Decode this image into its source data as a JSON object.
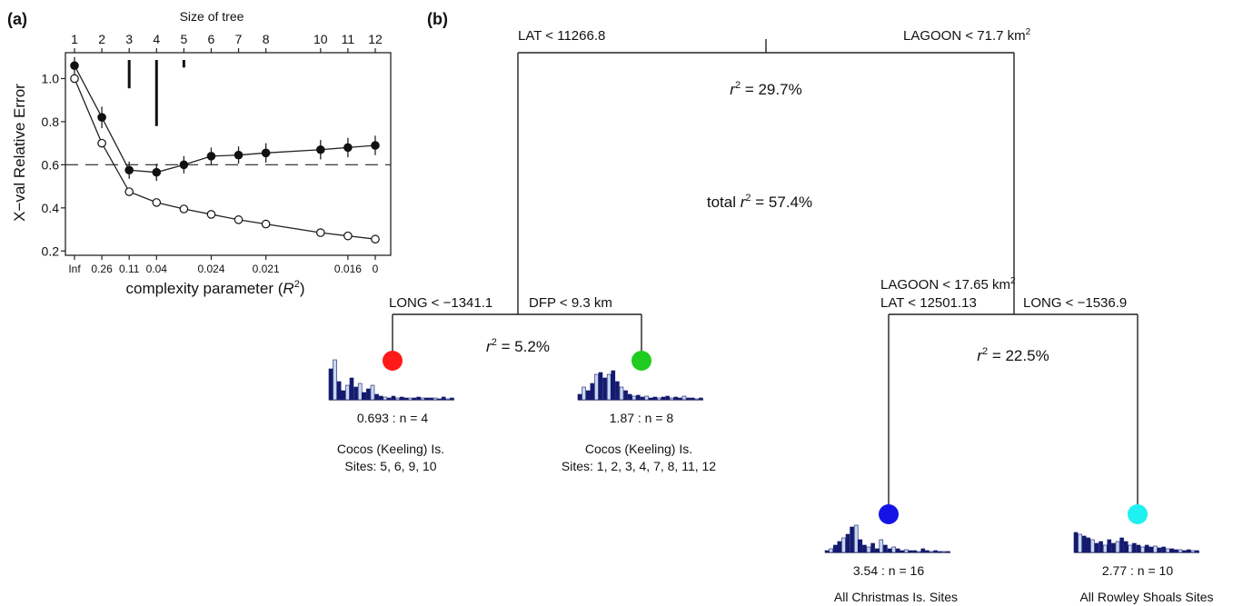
{
  "panel_a": {
    "label": "(a)",
    "top_axis_title": "Size of tree",
    "xlabel_prefix": "complexity parameter (",
    "xlabel_var": "R",
    "xlabel_sup": "2",
    "xlabel_suffix": ")",
    "ylabel": "X−val Relative Error"
  },
  "panel_b": {
    "label": "(b)",
    "root_left_split": "LAT < 11266.8",
    "root_right_split": "LAGOON < 71.7 km",
    "root_right_sup": "2",
    "root_r2": "= 29.7%",
    "total_prefix": "total ",
    "total_r2": "= 57.4%",
    "left_left_split": "LONG < −1341.1",
    "left_right_split": "DFP < 9.3 km",
    "left_r2": "= 5.2%",
    "right_split_line1": "LAGOON < 17.65 km",
    "right_split_line1_sup": "2",
    "right_split_line2": "LAT < 12501.13",
    "right_right_split": "LONG < −1536.9",
    "right_r2": "= 22.5%",
    "r_symbol": "r",
    "r_sup": "2",
    "leaves": [
      {
        "color": "#ff1a1a",
        "stat": "0.693 : n = 4",
        "line1": "Cocos (Keeling) Is.",
        "line2": "Sites: 5, 6, 9, 10"
      },
      {
        "color": "#1fcc1f",
        "stat": "1.87 : n = 8",
        "line1": "Cocos (Keeling) Is.",
        "line2": "Sites: 1, 2, 3, 4, 7, 8, 11, 12"
      },
      {
        "color": "#1414e6",
        "stat": "3.54 : n = 16",
        "line1": "All Christmas Is. Sites",
        "line2": ""
      },
      {
        "color": "#1ff0f0",
        "stat": "2.77 : n = 10",
        "line1": "All Rowley Shoals Sites",
        "line2": ""
      }
    ]
  },
  "chart_data": [
    {
      "type": "line",
      "title": "",
      "xlabel": "complexity parameter (R2)",
      "ylabel": "X−val Relative Error",
      "top_axis_label": "Size of tree",
      "x": [
        1,
        2,
        3,
        4,
        5,
        6,
        7,
        8,
        10,
        11,
        12
      ],
      "x_top_ticks": [
        "1",
        "2",
        "3",
        "4",
        "5",
        "6",
        "7",
        "8",
        "10",
        "11",
        "12"
      ],
      "x_bottom_ticks": [
        {
          "pos": 1,
          "label": "Inf"
        },
        {
          "pos": 2,
          "label": "0.26"
        },
        {
          "pos": 3,
          "label": "0.11"
        },
        {
          "pos": 4,
          "label": "0.04"
        },
        {
          "pos": 6,
          "label": "0.024"
        },
        {
          "pos": 8,
          "label": "0.021"
        },
        {
          "pos": 11,
          "label": "0.016"
        },
        {
          "pos": 12,
          "label": "0"
        }
      ],
      "ylim": [
        0.18,
        1.12
      ],
      "yticks": [
        0.2,
        0.4,
        0.6,
        0.8,
        1.0
      ],
      "ytick_labels": [
        "0.2",
        "0.4",
        "0.6",
        "0.8",
        "1.0"
      ],
      "series": [
        {
          "marker": "filled",
          "values": [
            1.06,
            0.82,
            0.575,
            0.565,
            0.6,
            0.64,
            0.645,
            0.655,
            0.67,
            0.68,
            0.69
          ],
          "err": [
            0.04,
            0.05,
            0.04,
            0.04,
            0.04,
            0.04,
            0.04,
            0.045,
            0.045,
            0.045,
            0.045
          ]
        },
        {
          "marker": "open",
          "values": [
            1.0,
            0.7,
            0.475,
            0.425,
            0.395,
            0.37,
            0.345,
            0.325,
            0.285,
            0.27,
            0.255
          ]
        }
      ],
      "reference_line": 0.6,
      "top_marks": [
        {
          "pos": 3,
          "height": 0.3
        },
        {
          "pos": 4,
          "height": 0.7
        },
        {
          "pos": 5,
          "height": 0.08
        }
      ]
    }
  ]
}
